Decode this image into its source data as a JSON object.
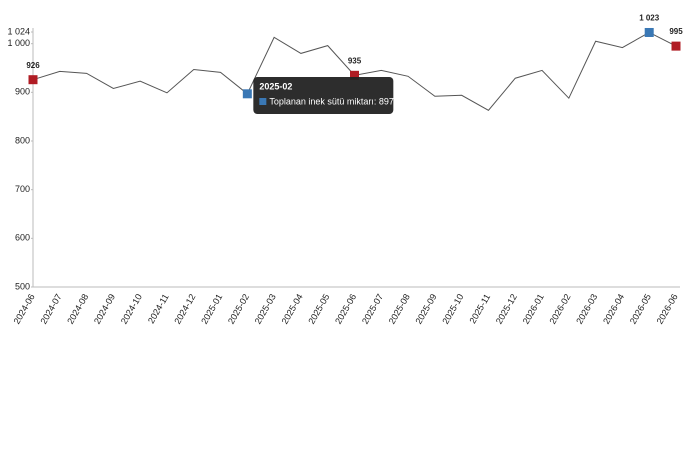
{
  "chart_data": {
    "type": "line",
    "categories": [
      "2024-06",
      "2024-07",
      "2024-08",
      "2024-09",
      "2024-10",
      "2024-11",
      "2024-12",
      "2025-01",
      "2025-02",
      "2025-03",
      "2025-04",
      "2025-05",
      "2025-06",
      "2025-07",
      "2025-08",
      "2025-09",
      "2025-10",
      "2025-11",
      "2025-12",
      "2026-01",
      "2026-02",
      "2026-03",
      "2026-04",
      "2026-05",
      "2026-06"
    ],
    "values": [
      926,
      943,
      939,
      908,
      923,
      899,
      947,
      941,
      897,
      1013,
      980,
      996,
      935,
      945,
      933,
      892,
      894,
      863,
      929,
      945,
      888,
      1005,
      992,
      1023,
      995
    ],
    "value_labels": [
      "926",
      null,
      null,
      null,
      null,
      null,
      null,
      null,
      null,
      null,
      null,
      null,
      "935",
      null,
      null,
      null,
      null,
      null,
      null,
      null,
      null,
      null,
      null,
      "1 023",
      "995"
    ],
    "marker_colors": [
      "#b01c24",
      null,
      null,
      null,
      null,
      null,
      null,
      null,
      "#3a78b5",
      null,
      null,
      null,
      "#b01c24",
      null,
      null,
      null,
      null,
      null,
      null,
      null,
      null,
      null,
      null,
      "#3a78b5",
      "#b01c24"
    ],
    "color": "#555555",
    "ylim": [
      500,
      1024
    ],
    "yticks": [
      500,
      600,
      700,
      800,
      900,
      {
        "value": 1000,
        "label": "1 000"
      },
      {
        "value": 1024,
        "label": "1 024"
      }
    ],
    "tooltip": {
      "title": "2025-02",
      "text": "Toplanan inek sütü miktarı: 897",
      "color": "#3a78b5"
    }
  }
}
